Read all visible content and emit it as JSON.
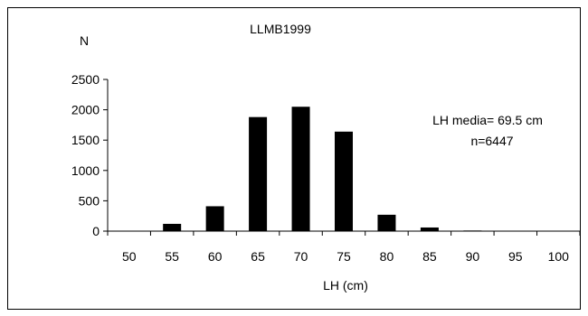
{
  "chart_data": {
    "type": "bar",
    "title": "LLMB1999",
    "ylabel": "N",
    "xlabel": "LH (cm)",
    "categories": [
      "50",
      "55",
      "60",
      "65",
      "70",
      "75",
      "80",
      "85",
      "90",
      "95",
      "100"
    ],
    "values": [
      5,
      120,
      410,
      1880,
      2050,
      1640,
      270,
      60,
      10,
      5,
      5
    ],
    "yticks": [
      0,
      500,
      1000,
      1500,
      2000,
      2500
    ],
    "ylim": [
      0,
      2500
    ],
    "grid": false,
    "bar_color": "#000000",
    "annotations": [
      "LH media= 69.5 cm",
      "n=6447"
    ]
  }
}
